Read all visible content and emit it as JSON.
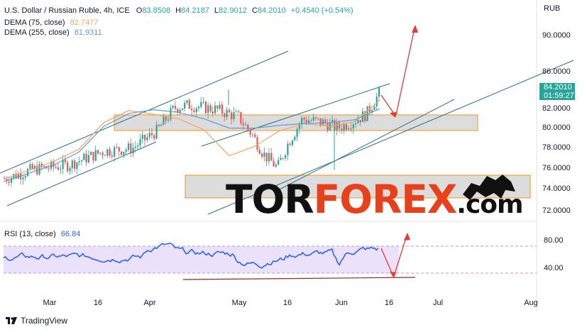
{
  "header": {
    "symbol_line": "U.S. Dollar / Russian Ruble, 4h, ICE",
    "o_label": "O",
    "o_value": "83.8508",
    "h_label": "H",
    "h_value": "84.2187",
    "l_label": "L",
    "l_value": "82.9012",
    "c_label": "C",
    "c_value": "84.2010",
    "change": "+0.4540 (+0.54%)",
    "dema75_label": "DEMA (75, close)",
    "dema75_value": "82.7477",
    "dema255_label": "DEMA (255, close)",
    "dema255_value": "81.9311"
  },
  "currency": "RUB",
  "price_badge": {
    "price": "84.2010",
    "countdown": "01:59:27",
    "color": "#26a69a"
  },
  "rsi": {
    "label": "RSI (13, close)",
    "value": "66.84",
    "ticks": [
      "80.00",
      "40.00"
    ],
    "band": [
      30,
      70
    ]
  },
  "footer": {
    "brand": "TradingView"
  },
  "watermark": {
    "part1": "TOR",
    "part2": "FOREX",
    "part3": ".com"
  },
  "colors": {
    "up": "#26a69a",
    "down": "#ef5350",
    "dema75": "#f7a35c",
    "dema255": "#5b9bd5",
    "rsi": "#2962ff",
    "zone": "#f2a33a",
    "arrow": "#e53935",
    "channel": "#2a6f8f"
  },
  "chart_data": {
    "type": "candlestick",
    "y_ticks": [
      "90.0000",
      "86.0000",
      "82.0000",
      "80.0000",
      "78.0000",
      "76.0000",
      "74.0000",
      "72.0000"
    ],
    "x_ticks": [
      "Mar",
      "16",
      "Apr",
      "May",
      "16",
      "Jun",
      "16",
      "Jul",
      "Aug"
    ],
    "ylim": [
      71,
      93
    ],
    "series": [
      {
        "name": "DEMA (75, close)",
        "values": [
          74.3,
          75.2,
          76.2,
          77.5,
          80.4,
          81.7,
          81.3,
          80.8,
          79.6,
          76.8,
          77.8,
          79.5,
          80.3,
          80.0,
          80.5,
          82.8
        ]
      },
      {
        "name": "DEMA (255, close)",
        "values": [
          74.0,
          74.9,
          75.8,
          77.2,
          80.0,
          81.4,
          81.8,
          81.5,
          80.8,
          79.8,
          79.8,
          80.1,
          80.3,
          80.4,
          80.7,
          81.9
        ]
      }
    ],
    "resistance_zone": [
      79.5,
      81.3
    ],
    "support_zone": [
      73.0,
      75.2
    ],
    "last_price": 84.201
  }
}
